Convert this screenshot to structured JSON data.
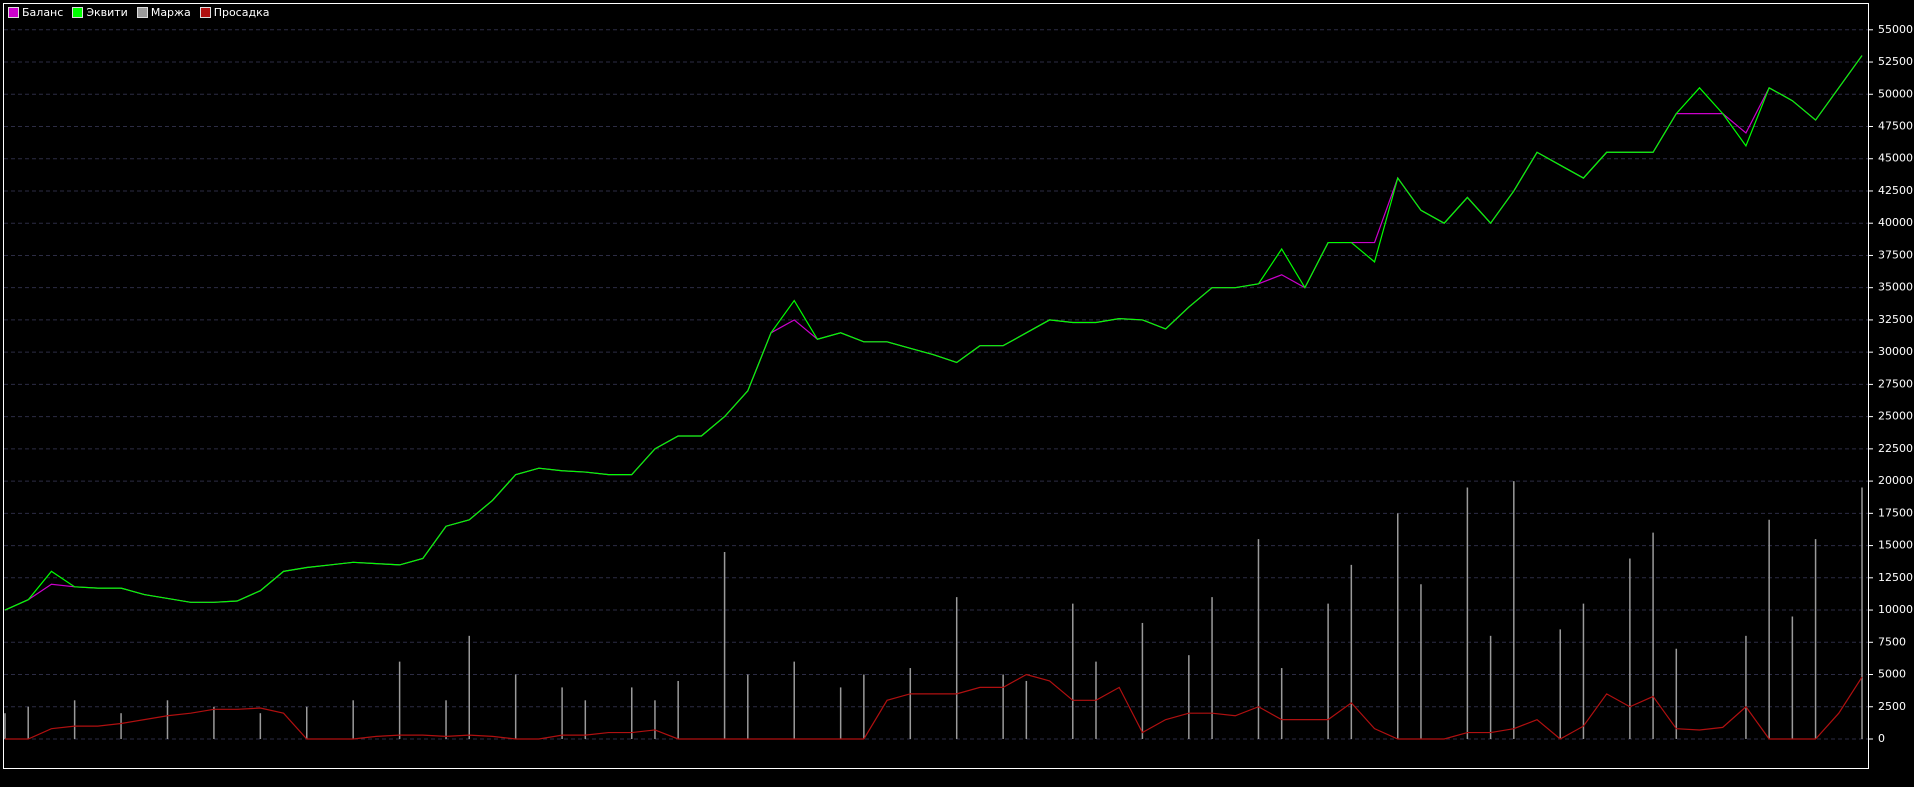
{
  "chart_data": {
    "type": "line",
    "ylim": [
      -2250,
      57000
    ],
    "yticks": [
      0,
      2500,
      5000,
      7500,
      10000,
      12500,
      15000,
      17500,
      20000,
      22500,
      25000,
      27500,
      30000,
      32500,
      35000,
      37500,
      40000,
      42500,
      45000,
      47500,
      50000,
      52500,
      55000
    ],
    "grid": true,
    "legend": "top-left",
    "series": [
      {
        "name": "Баланс",
        "color": "#cc00cc",
        "kind": "line",
        "values": [
          10000,
          10800,
          12000,
          11800,
          11700,
          11700,
          11200,
          10900,
          10600,
          10600,
          10700,
          11500,
          13000,
          13300,
          13500,
          13700,
          13600,
          13500,
          14000,
          16500,
          17000,
          18500,
          20500,
          21000,
          20800,
          20700,
          20500,
          20500,
          22500,
          23500,
          23500,
          25000,
          27000,
          31500,
          32500,
          31000,
          31500,
          30800,
          30800,
          30300,
          29800,
          29200,
          30500,
          30500,
          31500,
          32500,
          32300,
          32300,
          32600,
          32500,
          31800,
          33500,
          35000,
          35000,
          35300,
          36000,
          35000,
          38500,
          38500,
          38500,
          43500,
          41000,
          40000,
          42000,
          40000,
          42500,
          45500,
          44500,
          43500,
          45500,
          45500,
          45500,
          48500,
          48500,
          48500,
          47000,
          50500,
          49500,
          48000,
          50500,
          53000
        ]
      },
      {
        "name": "Эквити",
        "color": "#00ff00",
        "kind": "line",
        "values": [
          10000,
          10800,
          13000,
          11800,
          11700,
          11700,
          11200,
          10900,
          10600,
          10600,
          10700,
          11500,
          13000,
          13300,
          13500,
          13700,
          13600,
          13500,
          14000,
          16500,
          17000,
          18500,
          20500,
          21000,
          20800,
          20700,
          20500,
          20500,
          22500,
          23500,
          23500,
          25000,
          27000,
          31500,
          34000,
          31000,
          31500,
          30800,
          30800,
          30300,
          29800,
          29200,
          30500,
          30500,
          31500,
          32500,
          32300,
          32300,
          32600,
          32500,
          31800,
          33500,
          35000,
          35000,
          35300,
          38000,
          35000,
          38500,
          38500,
          37000,
          43500,
          41000,
          40000,
          42000,
          40000,
          42500,
          45500,
          44500,
          43500,
          45500,
          45500,
          45500,
          48500,
          50500,
          48500,
          46000,
          50500,
          49500,
          48000,
          50500,
          53000
        ]
      },
      {
        "name": "Маржа",
        "color": "#9a9a9a",
        "kind": "spike",
        "values": [
          2000,
          2500,
          0,
          3000,
          0,
          2000,
          0,
          3000,
          0,
          2500,
          0,
          2000,
          0,
          2500,
          0,
          3000,
          0,
          6000,
          0,
          3000,
          8000,
          0,
          5000,
          0,
          4000,
          3000,
          0,
          4000,
          3000,
          4500,
          0,
          14500,
          5000,
          0,
          6000,
          0,
          4000,
          5000,
          0,
          5500,
          0,
          11000,
          0,
          5000,
          4500,
          0,
          10500,
          6000,
          0,
          9000,
          0,
          6500,
          11000,
          0,
          15500,
          5500,
          0,
          10500,
          13500,
          0,
          17500,
          12000,
          0,
          19500,
          8000,
          20000,
          0,
          8500,
          10500,
          0,
          14000,
          16000,
          7000,
          0,
          0,
          8000,
          17000,
          9500,
          15500,
          0,
          19500
        ]
      },
      {
        "name": "Просадка",
        "color": "#b01010",
        "kind": "line",
        "values": [
          0,
          0,
          800,
          1000,
          1000,
          1200,
          1500,
          1800,
          2000,
          2300,
          2300,
          2400,
          2000,
          0,
          0,
          0,
          200,
          300,
          300,
          200,
          300,
          200,
          0,
          0,
          300,
          300,
          500,
          500,
          700,
          0,
          0,
          0,
          0,
          0,
          0,
          0,
          0,
          0,
          3000,
          3500,
          3500,
          3500,
          4000,
          4000,
          5000,
          4500,
          3000,
          3000,
          4000,
          500,
          1500,
          2000,
          2000,
          1800,
          2500,
          1500,
          1500,
          1500,
          2800,
          800,
          0,
          0,
          0,
          500,
          500,
          800,
          1500,
          0,
          1000,
          3500,
          2500,
          3300,
          800,
          700,
          900,
          2500,
          0,
          0,
          0,
          2000,
          4800
        ]
      }
    ]
  }
}
